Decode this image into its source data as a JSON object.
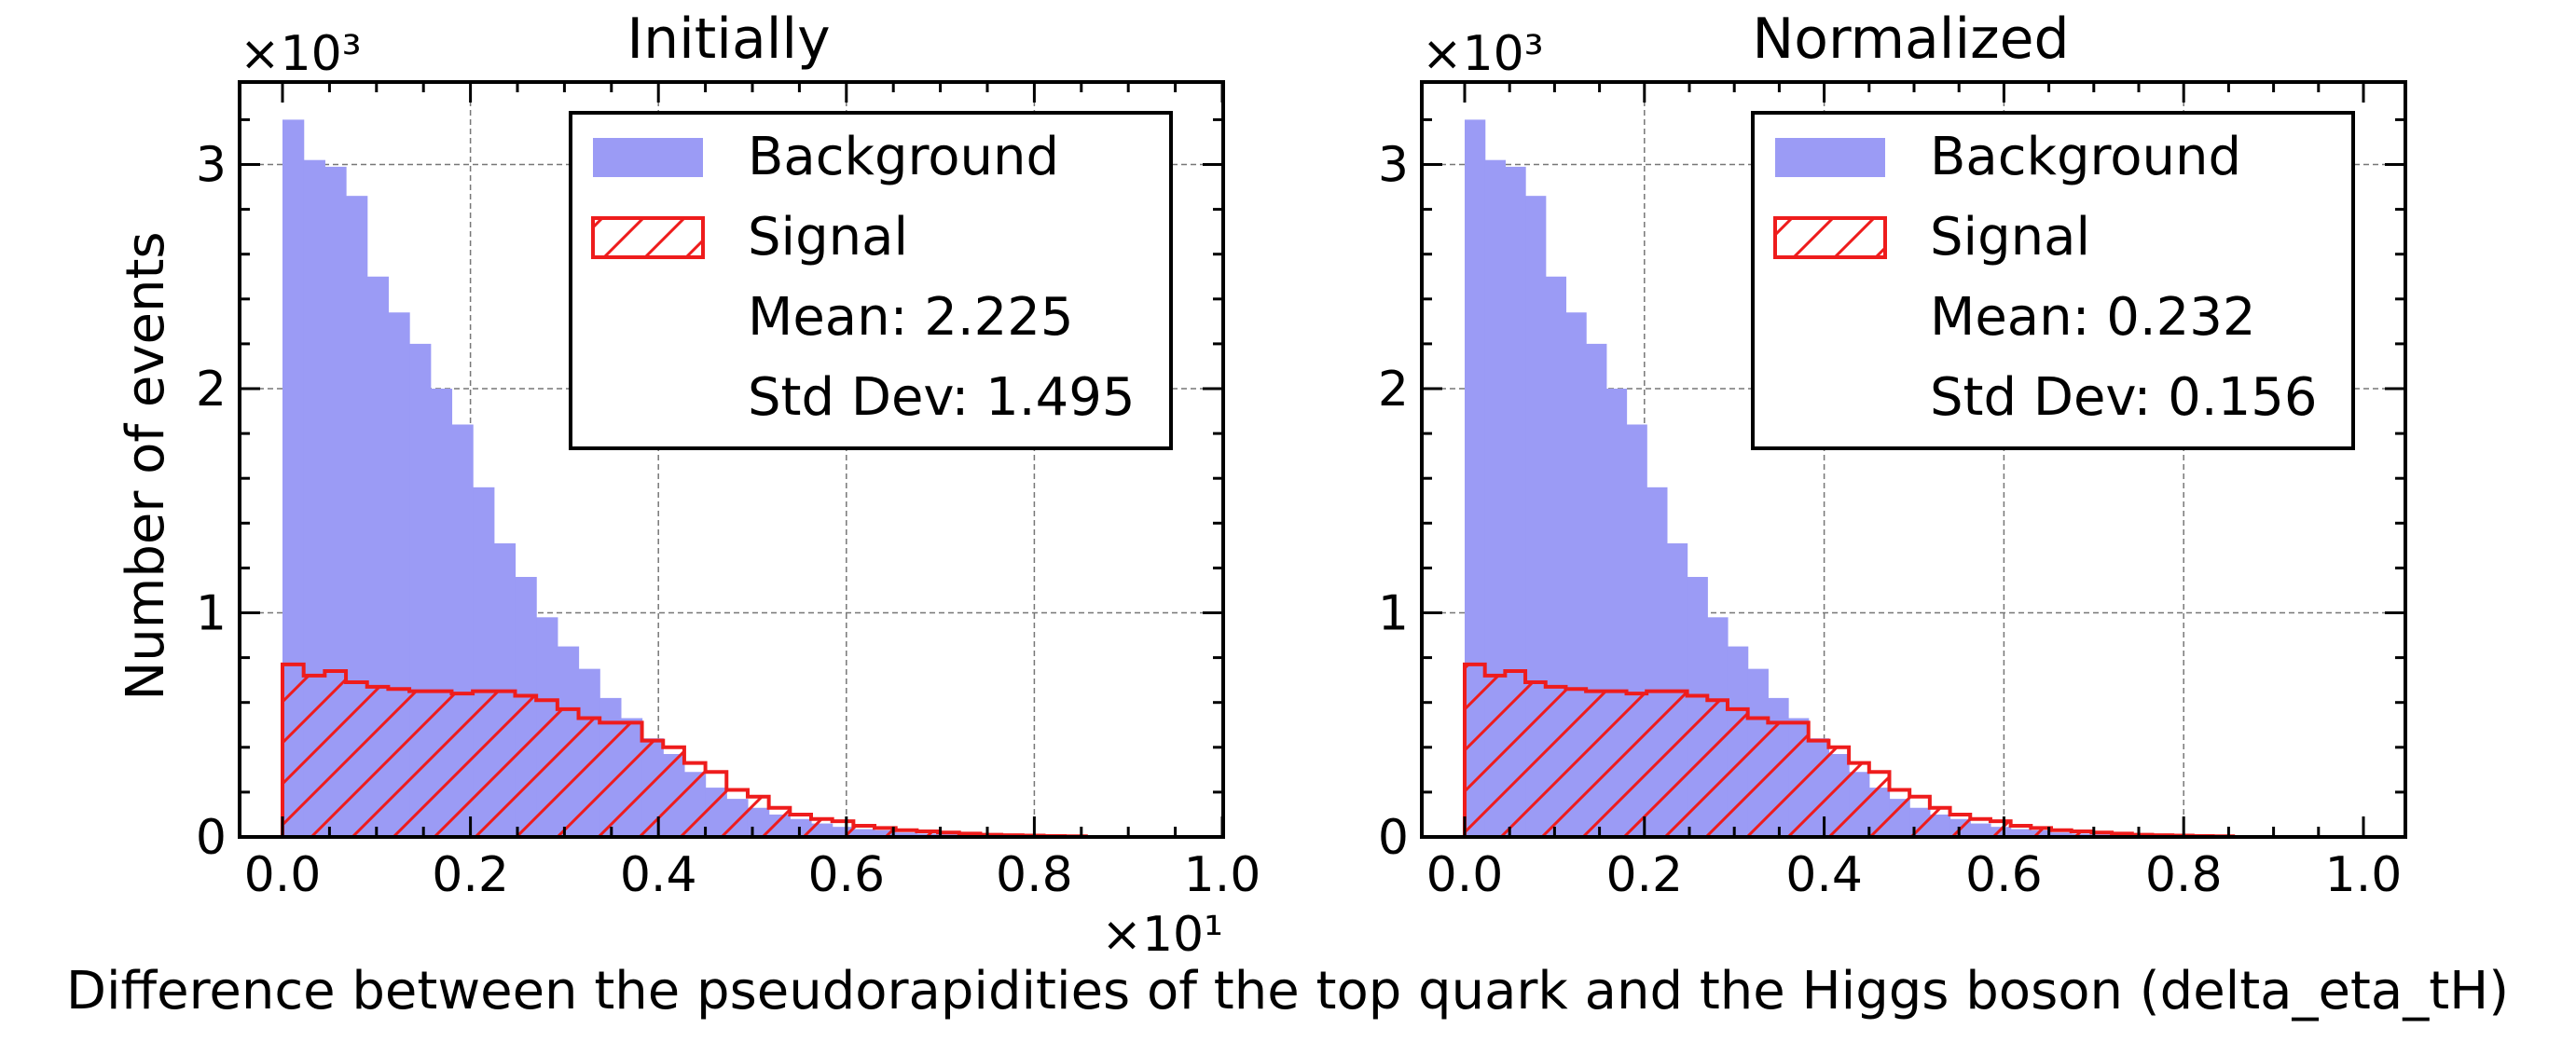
{
  "figure": {
    "xlabel": "Difference between the pseudorapidities of the top quark and the Higgs boson (delta_eta_tH)"
  },
  "chart_data": [
    {
      "type": "bar",
      "title": "Initially",
      "xlabel": "Difference between the pseudorapidities of the top quark and the Higgs boson (delta_eta_tH)",
      "ylabel": "Number of events",
      "y_multiplier": "×10³",
      "x_multiplier": "×10¹",
      "xlim": [
        -0.05,
        1.0
      ],
      "ylim": [
        0,
        3.35
      ],
      "x_ticks": [
        "0.0",
        "0.2",
        "0.4",
        "0.6",
        "0.8",
        "1.0"
      ],
      "y_ticks": [
        "0",
        "1",
        "2",
        "3"
      ],
      "grid": true,
      "legend_position": "top-right",
      "bin_edges": [
        0,
        0.0225,
        0.045,
        0.0675,
        0.09,
        0.1125,
        0.135,
        0.1575,
        0.18,
        0.2025,
        0.225,
        0.2475,
        0.27,
        0.2925,
        0.315,
        0.3375,
        0.36,
        0.3825,
        0.405,
        0.4275,
        0.45,
        0.4725,
        0.495,
        0.5175,
        0.54,
        0.5625,
        0.585,
        0.6075,
        0.63,
        0.6525,
        0.675,
        0.6975,
        0.72,
        0.7425,
        0.765,
        0.7875,
        0.81,
        0.8325,
        0.855
      ],
      "series": [
        {
          "name": "Background",
          "style": "filled",
          "color": "#9b9bf5",
          "values": [
            3.2,
            3.02,
            2.99,
            2.86,
            2.5,
            2.34,
            2.2,
            2.0,
            1.84,
            1.56,
            1.31,
            1.16,
            0.98,
            0.85,
            0.75,
            0.62,
            0.53,
            0.44,
            0.37,
            0.29,
            0.22,
            0.17,
            0.13,
            0.1,
            0.08,
            0.06,
            0.045,
            0.035,
            0.03,
            0.02,
            0.015,
            0.012,
            0.008,
            0.006,
            0.005,
            0.003,
            0.002,
            0.001
          ]
        },
        {
          "name": "Signal",
          "style": "hatched",
          "color": "#ee1c1c",
          "values": [
            0.77,
            0.72,
            0.74,
            0.69,
            0.67,
            0.66,
            0.65,
            0.65,
            0.64,
            0.65,
            0.65,
            0.63,
            0.61,
            0.57,
            0.53,
            0.51,
            0.51,
            0.43,
            0.4,
            0.33,
            0.29,
            0.21,
            0.18,
            0.13,
            0.1,
            0.08,
            0.07,
            0.05,
            0.04,
            0.03,
            0.025,
            0.02,
            0.015,
            0.01,
            0.008,
            0.006,
            0.004,
            0.003
          ]
        }
      ],
      "stats": {
        "mean": "Mean: 2.225",
        "std": "Std Dev: 1.495"
      }
    },
    {
      "type": "bar",
      "title": "Normalized",
      "xlabel": "Difference between the pseudorapidities of the top quark and the Higgs boson (delta_eta_tH)",
      "ylabel": "",
      "y_multiplier": "×10³",
      "x_multiplier": "",
      "xlim": [
        -0.05,
        1.05
      ],
      "ylim": [
        0,
        3.35
      ],
      "x_ticks": [
        "0.0",
        "0.2",
        "0.4",
        "0.6",
        "0.8",
        "1.0"
      ],
      "y_ticks": [
        "0",
        "1",
        "2",
        "3"
      ],
      "grid": true,
      "legend_position": "top-right",
      "bin_edges": [
        0,
        0.0225,
        0.045,
        0.0675,
        0.09,
        0.1125,
        0.135,
        0.1575,
        0.18,
        0.2025,
        0.225,
        0.2475,
        0.27,
        0.2925,
        0.315,
        0.3375,
        0.36,
        0.3825,
        0.405,
        0.4275,
        0.45,
        0.4725,
        0.495,
        0.5175,
        0.54,
        0.5625,
        0.585,
        0.6075,
        0.63,
        0.6525,
        0.675,
        0.6975,
        0.72,
        0.7425,
        0.765,
        0.7875,
        0.81,
        0.8325,
        0.855
      ],
      "series": [
        {
          "name": "Background",
          "style": "filled",
          "color": "#9b9bf5",
          "values": [
            3.2,
            3.02,
            2.99,
            2.86,
            2.5,
            2.34,
            2.2,
            2.0,
            1.84,
            1.56,
            1.31,
            1.16,
            0.98,
            0.85,
            0.75,
            0.62,
            0.53,
            0.44,
            0.37,
            0.29,
            0.22,
            0.17,
            0.13,
            0.1,
            0.08,
            0.06,
            0.045,
            0.035,
            0.03,
            0.02,
            0.015,
            0.012,
            0.008,
            0.006,
            0.005,
            0.003,
            0.002,
            0.001
          ]
        },
        {
          "name": "Signal",
          "style": "hatched",
          "color": "#ee1c1c",
          "values": [
            0.77,
            0.72,
            0.74,
            0.69,
            0.67,
            0.66,
            0.65,
            0.65,
            0.64,
            0.65,
            0.65,
            0.63,
            0.61,
            0.57,
            0.53,
            0.51,
            0.51,
            0.43,
            0.4,
            0.33,
            0.29,
            0.21,
            0.18,
            0.13,
            0.1,
            0.08,
            0.07,
            0.05,
            0.04,
            0.03,
            0.025,
            0.02,
            0.015,
            0.01,
            0.008,
            0.006,
            0.004,
            0.003
          ]
        }
      ],
      "stats": {
        "mean": "Mean: 0.232",
        "std": "Std Dev: 0.156"
      }
    }
  ]
}
